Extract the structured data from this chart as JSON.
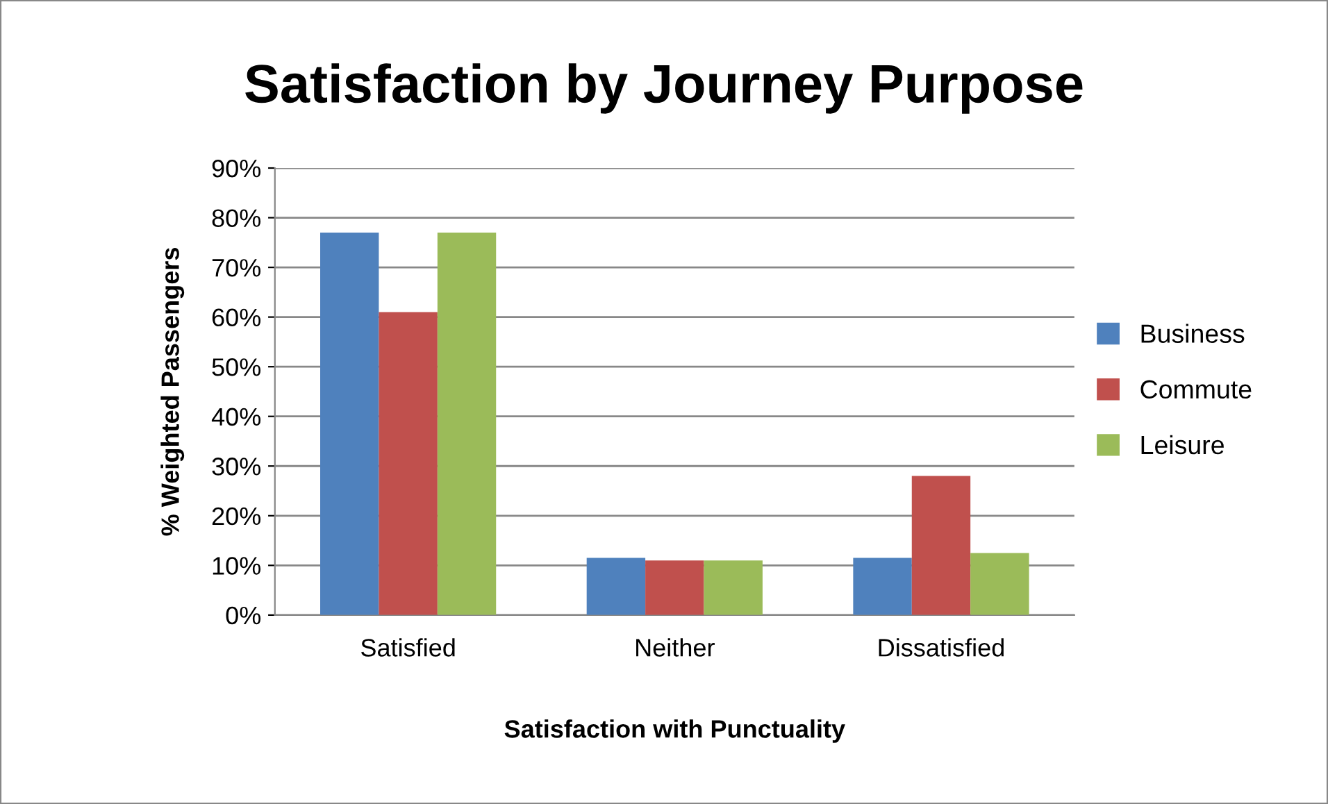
{
  "chart_data": {
    "type": "bar",
    "title": "Satisfaction by Journey Purpose",
    "xlabel": "Satisfaction with Punctuality",
    "ylabel": "% Weighted Passengers",
    "categories": [
      "Satisfied",
      "Neither",
      "Dissatisfied"
    ],
    "series": [
      {
        "name": "Business",
        "color": "#4f81bd",
        "values": [
          77,
          11.5,
          11.5
        ]
      },
      {
        "name": "Commute",
        "color": "#c0504d",
        "values": [
          61,
          11,
          28
        ]
      },
      {
        "name": "Leisure",
        "color": "#9bbb59",
        "values": [
          77,
          11,
          12.5
        ]
      }
    ],
    "ylim": [
      0,
      90
    ],
    "yticks": [
      {
        "value": 0,
        "label": "0%"
      },
      {
        "value": 10,
        "label": "10%"
      },
      {
        "value": 20,
        "label": "20%"
      },
      {
        "value": 30,
        "label": "30%"
      },
      {
        "value": 40,
        "label": "40%"
      },
      {
        "value": 50,
        "label": "50%"
      },
      {
        "value": 60,
        "label": "60%"
      },
      {
        "value": 70,
        "label": "70%"
      },
      {
        "value": 80,
        "label": "80%"
      },
      {
        "value": 90,
        "label": "90%"
      }
    ],
    "grid": "y",
    "legend": "right"
  }
}
